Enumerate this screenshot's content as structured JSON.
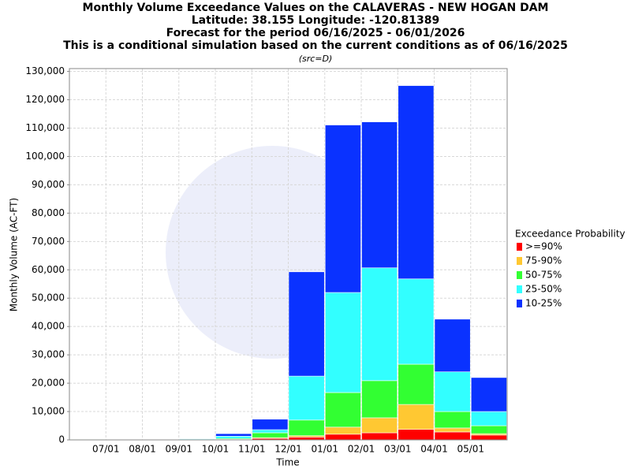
{
  "chart_data": {
    "type": "stacked_bar",
    "title": "Monthly Volume Exceedance Values on the CALAVERAS - NEW HOGAN DAM",
    "subtitle_lines": [
      "Latitude: 38.155 Longitude: -120.81389",
      "Forecast for the period 06/16/2025 - 06/01/2026",
      "This is a conditional simulation based on the current conditions as of 06/16/2025"
    ],
    "source": "(src=D)",
    "x_label": "Time",
    "y_label": "Monthly Volume (AC-FT)",
    "legend_title": "Exceedance Probability",
    "x_tick_labels": [
      "07/01",
      "08/01",
      "09/01",
      "10/01",
      "11/01",
      "12/01",
      "01/01",
      "02/01",
      "03/01",
      "04/01",
      "05/01"
    ],
    "ylim": [
      0,
      131000
    ],
    "yticks": [
      0,
      {
        "value": 10000,
        "label": "10,000"
      },
      {
        "value": 20000,
        "label": "20,000"
      },
      {
        "value": 30000,
        "label": "30,000"
      },
      {
        "value": 40000,
        "label": "40,000"
      },
      {
        "value": 50000,
        "label": "50,000"
      },
      {
        "value": 60000,
        "label": "60,000"
      },
      {
        "value": 70000,
        "label": "70,000"
      },
      {
        "value": 80000,
        "label": "80,000"
      },
      {
        "value": 90000,
        "label": "90,000"
      },
      {
        "value": 100000,
        "label": "100,000"
      },
      {
        "value": 110000,
        "label": "110,000"
      },
      {
        "value": 120000,
        "label": "120,000"
      },
      {
        "value": 130000,
        "label": "130,000"
      }
    ],
    "grid": true,
    "series": [
      {
        "name": ">=90%",
        "color": "#ff0000",
        "values": [
          200,
          50,
          50,
          50,
          100,
          500,
          1000,
          2000,
          2500,
          3700,
          2800,
          1700
        ]
      },
      {
        "name": "75-90%",
        "color": "#ffc832",
        "values": [
          50,
          10,
          30,
          30,
          100,
          300,
          500,
          2500,
          5300,
          8800,
          1400,
          500
        ]
      },
      {
        "name": "50-75%",
        "color": "#32ff32",
        "values": [
          30,
          10,
          20,
          70,
          300,
          1700,
          5500,
          12200,
          13100,
          14200,
          5800,
          2800
        ]
      },
      {
        "name": "25-50%",
        "color": "#32ffff",
        "values": [
          20,
          10,
          50,
          250,
          800,
          1100,
          15500,
          35300,
          39800,
          30100,
          14000,
          5000
        ]
      },
      {
        "name": "10-25%",
        "color": "#0a32ff",
        "values": [
          0,
          20,
          50,
          100,
          900,
          3700,
          36800,
          59100,
          51500,
          68200,
          18600,
          12000
        ]
      }
    ]
  }
}
